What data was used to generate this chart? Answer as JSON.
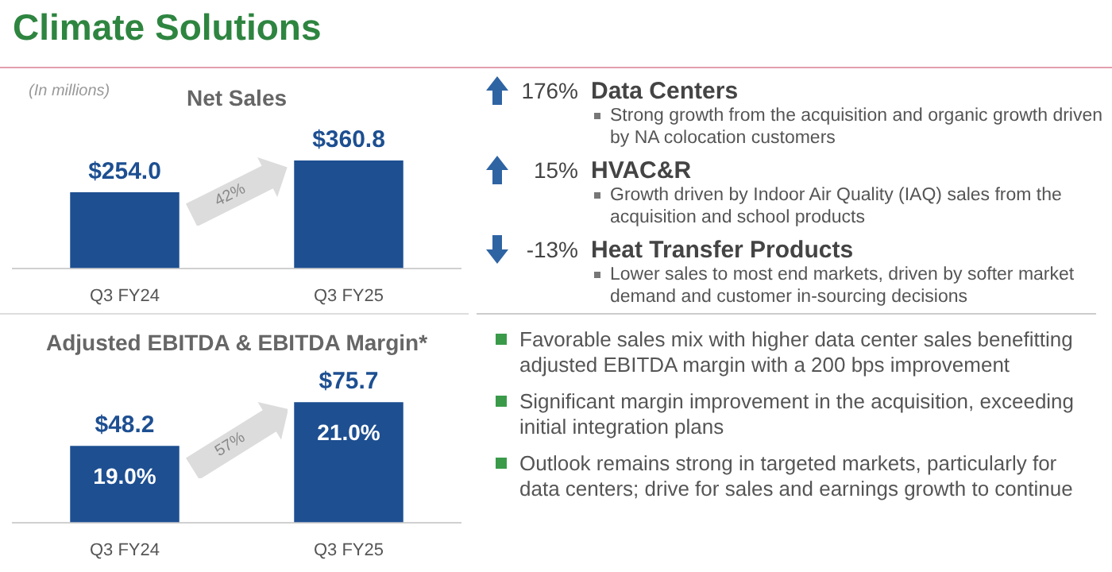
{
  "chart_data": [
    {
      "type": "bar",
      "title": "Net Sales",
      "subtitle": "(In millions)",
      "categories": [
        "Q3 FY24",
        "Q3 FY25"
      ],
      "values": [
        254.0,
        360.8
      ],
      "value_labels": [
        "$254.0",
        "$360.8"
      ],
      "color": "#1d4f91",
      "annotations": [
        "42%"
      ]
    },
    {
      "type": "bar",
      "title": "Adjusted EBITDA & EBITDA Margin*",
      "categories": [
        "Q3 FY24",
        "Q3 FY25"
      ],
      "values": [
        48.2,
        75.7
      ],
      "value_labels": [
        "$48.2",
        "$75.7"
      ],
      "color": "#1d4f91",
      "annotations": [
        "19.0%",
        "21.0%",
        "57%"
      ]
    },
    {
      "type": "other",
      "title": "Climate Solutions",
      "categories": [
        "Data Centers",
        "HVAC&R",
        "Heat Transfer Products"
      ],
      "values": [
        176,
        15,
        -13
      ],
      "value_labels": [
        "176%",
        "15%",
        "-13%"
      ],
      "annotations": [
        "Strong growth from the acquisition and organic growth driven by NA colocation customers",
        "Growth driven by Indoor Air Quality (IAQ) sales from the acquisition and school products",
        "Lower sales to most end markets, driven by softer market demand and customer in-sourcing decisions",
        "Favorable sales mix with higher data center sales benefitting adjusted EBITDA margin with a 200 bps improvement",
        "Significant margin improvement in the acquisition, exceeding initial integration plans",
        "Outlook remains strong in targeted markets, particularly for data centers; drive for sales and earnings growth to continue"
      ]
    }
  ]
}
